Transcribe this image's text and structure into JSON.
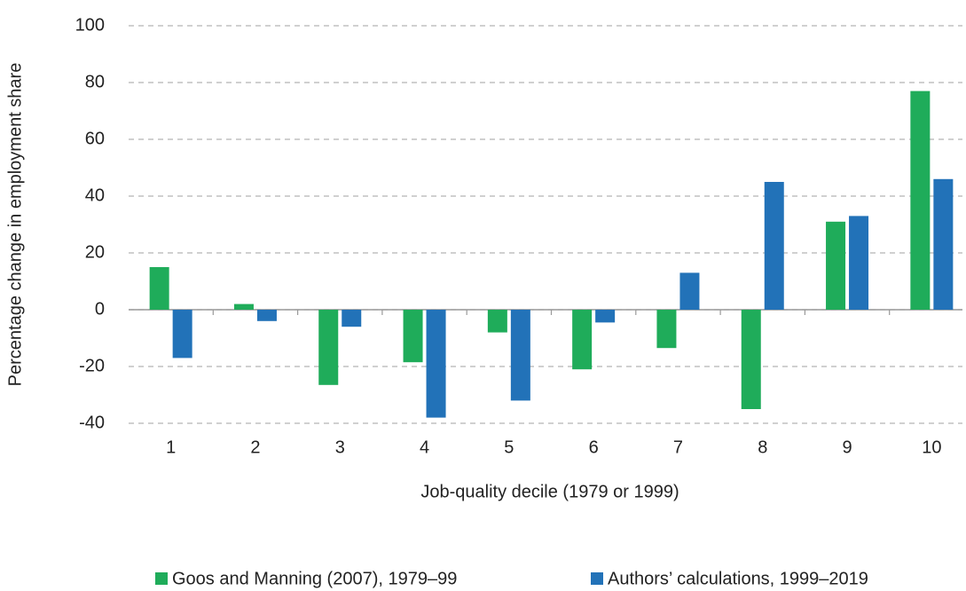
{
  "chart_data": {
    "type": "bar",
    "x_label": "Job-quality decile (1979 or 1999)",
    "y_label": "Percentage change in employment share",
    "categories": [
      "1",
      "2",
      "3",
      "4",
      "5",
      "6",
      "7",
      "8",
      "9",
      "10"
    ],
    "series": [
      {
        "name": "Goos and Manning (2007), 1979–99",
        "color": "#1fac5a",
        "values": [
          15,
          2,
          -26.5,
          -18.5,
          -8,
          -21,
          -13.5,
          -35,
          31,
          77
        ]
      },
      {
        "name": "Authors’ calculations, 1999–2019",
        "color": "#2272b8",
        "values": [
          -17,
          -4,
          -6,
          -38,
          -32,
          -4.5,
          13,
          45,
          33,
          46
        ]
      }
    ],
    "ylim": [
      -40,
      100
    ],
    "yticks": [
      -40,
      -20,
      0,
      20,
      40,
      60,
      80,
      100
    ],
    "grid": true
  }
}
